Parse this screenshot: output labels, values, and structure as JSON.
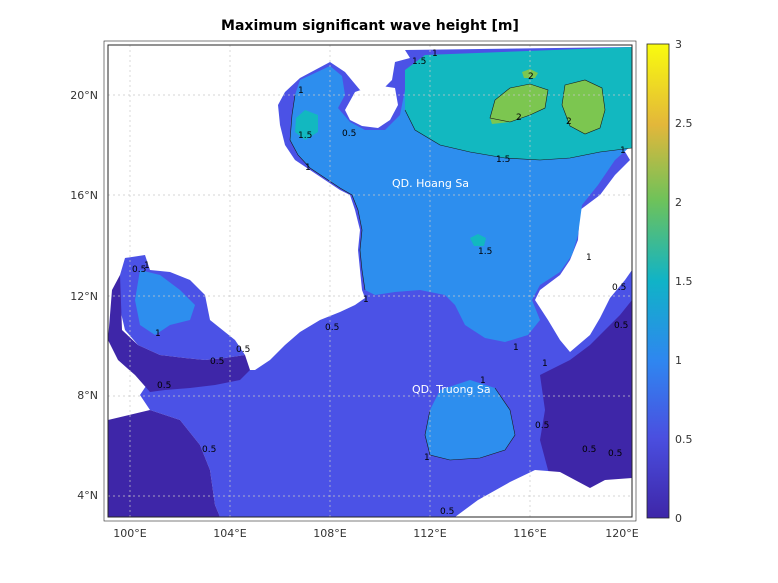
{
  "title": "Maximum significant wave height [m]",
  "x_ticks": [
    "100°E",
    "104°E",
    "108°E",
    "112°E",
    "116°E",
    "120°E"
  ],
  "y_ticks": [
    "4°N",
    "8°N",
    "12°N",
    "16°N",
    "20°N"
  ],
  "colorbar_ticks": [
    "0",
    "0.5",
    "1",
    "1.5",
    "2",
    "2.5",
    "3"
  ],
  "places": [
    "QD. Hoang Sa",
    "QD. Truong Sa"
  ],
  "contour_labels": {
    "one": "1",
    "one_five": "1.5",
    "two": "2",
    "half": "0.5"
  },
  "colors": {
    "land": "#ffffff",
    "level_0": "#3e26a8",
    "level_0_5": "#4b52e6",
    "level_1": "#2d8eee",
    "level_1_5": "#12b8c0",
    "level_2": "#7cc650",
    "level_3": "#f9fb0e"
  },
  "colorbar_range": [
    0,
    3
  ]
}
